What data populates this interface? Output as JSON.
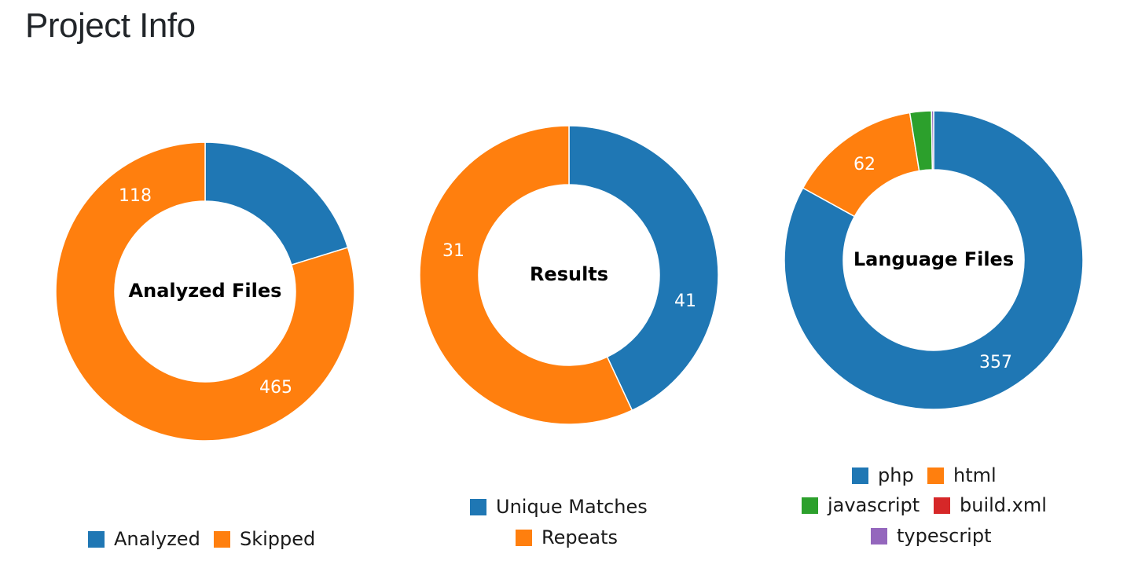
{
  "page": {
    "title": "Project Info"
  },
  "chart_data": [
    {
      "type": "pie",
      "title": "Analyzed Files",
      "categories": [
        "Analyzed",
        "Skipped"
      ],
      "values": [
        118,
        465
      ],
      "colors": [
        "#1f77b4",
        "#ff7f0e"
      ],
      "data_labels": [
        "118",
        "465"
      ],
      "legend": "bottom"
    },
    {
      "type": "pie",
      "title": "Results",
      "categories": [
        "Unique Matches",
        "Repeats"
      ],
      "values": [
        31,
        41
      ],
      "colors": [
        "#1f77b4",
        "#ff7f0e"
      ],
      "data_labels": [
        "31",
        "41"
      ],
      "legend": "bottom"
    },
    {
      "type": "pie",
      "title": "Language Files",
      "categories": [
        "php",
        "html",
        "javascript",
        "build.xml",
        "typescript"
      ],
      "values": [
        357,
        62,
        10,
        0,
        1
      ],
      "colors": [
        "#1f77b4",
        "#ff7f0e",
        "#2ca02c",
        "#d62728",
        "#9467bd"
      ],
      "data_labels": [
        "357",
        "62",
        "",
        "",
        ""
      ],
      "legend": "bottom"
    }
  ]
}
